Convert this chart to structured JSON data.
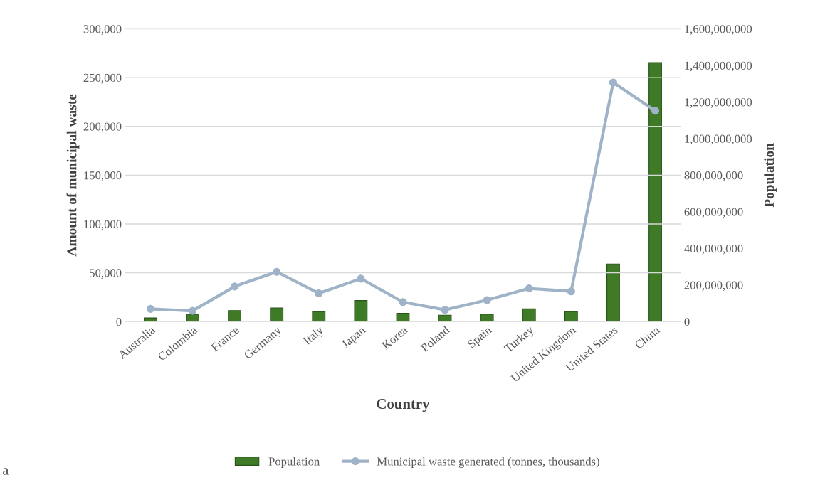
{
  "chart_data": {
    "type": "bar",
    "xlabel": "Country",
    "ylabel": "Amount of municipal waste",
    "y2label": "Population",
    "categories": [
      "Australia",
      "Colombia",
      "France",
      "Germany",
      "Italy",
      "Japan",
      "Korea",
      "Poland",
      "Spain",
      "Turkey",
      "United Kingdom",
      "United States",
      "China"
    ],
    "series": [
      {
        "name": "Population",
        "axis": "y2",
        "color": "#3f7a26",
        "values": [
          20000000,
          40000000,
          60000000,
          75000000,
          55000000,
          115000000,
          45000000,
          35000000,
          40000000,
          70000000,
          55000000,
          315000000,
          1415000000
        ]
      },
      {
        "name": "Municipal waste generated (tonnes, thousands)",
        "type": "line",
        "axis": "y",
        "color": "#9fb3c8",
        "marker": "circle",
        "values": [
          13000,
          11000,
          36000,
          51000,
          29000,
          44000,
          20000,
          12000,
          22000,
          34000,
          31000,
          245000,
          216000
        ]
      }
    ],
    "ylim": [
      0,
      300000
    ],
    "yticks": [
      {
        "value": 0,
        "label": "0"
      },
      {
        "value": 50000,
        "label": "50,000"
      },
      {
        "value": 100000,
        "label": "100,000"
      },
      {
        "value": 150000,
        "label": "150,000"
      },
      {
        "value": 200000,
        "label": "200,000"
      },
      {
        "value": 250000,
        "label": "250,000"
      },
      {
        "value": 300000,
        "label": "300,000"
      }
    ],
    "y2lim": [
      0,
      1600000000
    ],
    "y2ticks": [
      {
        "value": 0,
        "label": "0"
      },
      {
        "value": 200000000,
        "label": "200,000,000"
      },
      {
        "value": 400000000,
        "label": "400,000,000"
      },
      {
        "value": 600000000,
        "label": "600,000,000"
      },
      {
        "value": 800000000,
        "label": "800,000,000"
      },
      {
        "value": 1000000000,
        "label": "1,000,000,000"
      },
      {
        "value": 1200000000,
        "label": "1,200,000,000"
      },
      {
        "value": 1400000000,
        "label": "1,400,000,000"
      },
      {
        "value": 1600000000,
        "label": "1,600,000,000"
      }
    ],
    "grid": "y",
    "legend": "bottom",
    "annotations": [
      "a"
    ]
  }
}
